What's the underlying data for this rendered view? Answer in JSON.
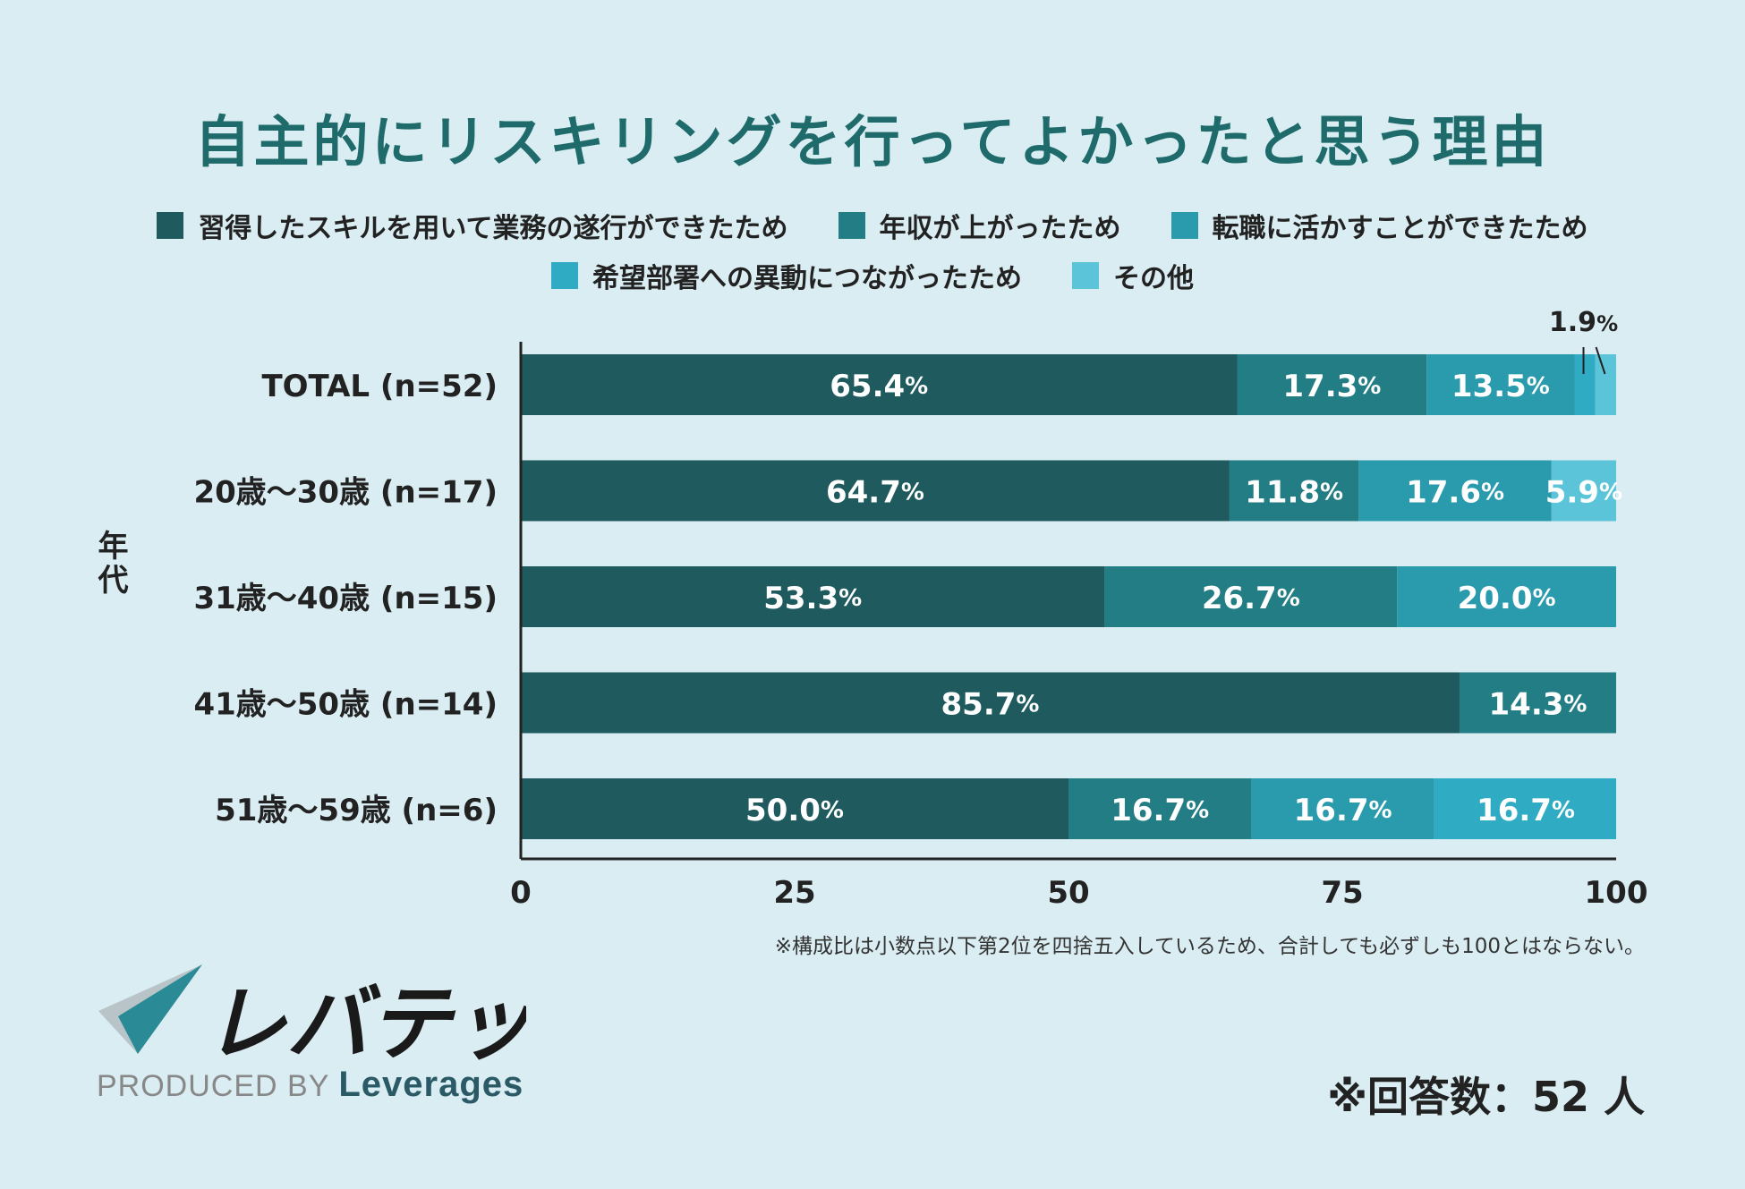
{
  "chart_data": {
    "type": "stacked-bar-horizontal",
    "title": "自主的にリスキリングを行ってよかったと思う理由",
    "ylabel": "年代",
    "xlim": [
      0,
      100
    ],
    "xticks": [
      "0",
      "25",
      "50",
      "75",
      "100"
    ],
    "legend": [
      {
        "name": "習得したスキルを用いて業務の遂行ができたため",
        "color": "#1e5a5e"
      },
      {
        "name": "年収が上がったため",
        "color": "#237d84"
      },
      {
        "name": "転職に活かすことができたため",
        "color": "#2a9aad"
      },
      {
        "name": "希望部署への異動につながったため",
        "color": "#30abc4"
      },
      {
        "name": "その他",
        "color": "#5cc4d8"
      }
    ],
    "categories": [
      "TOTAL (n=52)",
      "20歳〜30歳 (n=17)",
      "31歳〜40歳 (n=15)",
      "41歳〜50歳 (n=14)",
      "51歳〜59歳 (n=6)"
    ],
    "rows": [
      {
        "values": [
          65.4,
          17.3,
          13.5,
          1.9,
          1.9
        ],
        "labels": [
          "65.4",
          "17.3",
          "13.5",
          "",
          ""
        ]
      },
      {
        "values": [
          64.7,
          11.8,
          17.6,
          0,
          5.9
        ],
        "labels": [
          "64.7",
          "11.8",
          "17.6",
          "",
          "5.9"
        ]
      },
      {
        "values": [
          53.3,
          26.7,
          20.0,
          0,
          0
        ],
        "labels": [
          "53.3",
          "26.7",
          "20.0",
          "",
          ""
        ]
      },
      {
        "values": [
          85.7,
          14.3,
          0,
          0,
          0
        ],
        "labels": [
          "85.7",
          "14.3",
          "",
          "",
          ""
        ]
      },
      {
        "values": [
          50.0,
          16.7,
          16.7,
          16.7,
          0
        ],
        "labels": [
          "50.0",
          "16.7",
          "16.7",
          "16.7",
          ""
        ]
      }
    ],
    "callout": "1.9",
    "percent_sign": "%"
  },
  "note": "※構成比は小数点以下第2位を四捨五入しているため、合計しても必ずしも100とはならない。",
  "logo_text": "レバテック",
  "produced_by": "PRODUCED BY",
  "brand": "Leverages",
  "respondents": "※回答数：52 人"
}
